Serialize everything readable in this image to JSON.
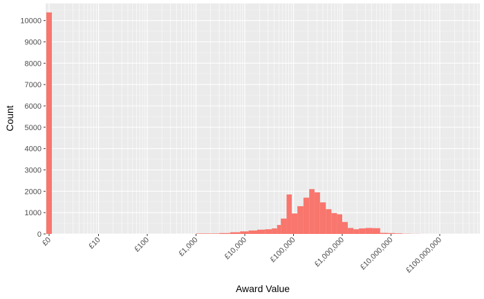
{
  "chart_data": {
    "type": "bar",
    "title": "",
    "xlabel": "Award Value",
    "ylabel": "Count",
    "x_scale": "log10 (with £0 shown at far left)",
    "x_tick_labels": [
      "£0",
      "£10",
      "£100",
      "£1,000",
      "£10,000",
      "£100,000",
      "£1,000,000",
      "£10,000,000",
      "£100,000,000"
    ],
    "y_ticks": [
      0,
      1000,
      2000,
      3000,
      4000,
      5000,
      6000,
      7000,
      8000,
      9000,
      10000
    ],
    "ylim": [
      0,
      10800
    ],
    "grid": true,
    "legend": "none",
    "bar_color": "#F8766D",
    "panel_color": "#EBEBEB",
    "bins": [
      {
        "x_from": 0,
        "x_to": 0,
        "value": 10380
      },
      {
        "x_from": 1000,
        "x_to": 3000,
        "value": 20
      },
      {
        "x_from": 3000,
        "x_to": 5000,
        "value": 40
      },
      {
        "x_from": 5000,
        "x_to": 8000,
        "value": 80
      },
      {
        "x_from": 8000,
        "x_to": 12000,
        "value": 120
      },
      {
        "x_from": 12000,
        "x_to": 18000,
        "value": 160
      },
      {
        "x_from": 18000,
        "x_to": 26000,
        "value": 200
      },
      {
        "x_from": 26000,
        "x_to": 36000,
        "value": 220
      },
      {
        "x_from": 36000,
        "x_to": 46000,
        "value": 260
      },
      {
        "x_from": 46000,
        "x_to": 55000,
        "value": 420
      },
      {
        "x_from": 55000,
        "x_to": 72000,
        "value": 720
      },
      {
        "x_from": 72000,
        "x_to": 92000,
        "value": 1850
      },
      {
        "x_from": 92000,
        "x_to": 120000,
        "value": 960
      },
      {
        "x_from": 120000,
        "x_to": 160000,
        "value": 1300
      },
      {
        "x_from": 160000,
        "x_to": 210000,
        "value": 1700
      },
      {
        "x_from": 210000,
        "x_to": 270000,
        "value": 2100
      },
      {
        "x_from": 270000,
        "x_to": 350000,
        "value": 1950
      },
      {
        "x_from": 350000,
        "x_to": 460000,
        "value": 1480
      },
      {
        "x_from": 460000,
        "x_to": 600000,
        "value": 1160
      },
      {
        "x_from": 600000,
        "x_to": 780000,
        "value": 980
      },
      {
        "x_from": 780000,
        "x_to": 1000000,
        "value": 920
      },
      {
        "x_from": 1000000,
        "x_to": 1300000,
        "value": 560
      },
      {
        "x_from": 1300000,
        "x_to": 1700000,
        "value": 280
      },
      {
        "x_from": 1700000,
        "x_to": 2200000,
        "value": 220
      },
      {
        "x_from": 2200000,
        "x_to": 3000000,
        "value": 260
      },
      {
        "x_from": 3000000,
        "x_to": 4200000,
        "value": 280
      },
      {
        "x_from": 4200000,
        "x_to": 6000000,
        "value": 270
      },
      {
        "x_from": 6000000,
        "x_to": 8500000,
        "value": 50
      },
      {
        "x_from": 8500000,
        "x_to": 12000000,
        "value": 40
      },
      {
        "x_from": 12000000,
        "x_to": 17000000,
        "value": 25
      },
      {
        "x_from": 17000000,
        "x_to": 25000000,
        "value": 10
      },
      {
        "x_from": 25000000,
        "x_to": 40000000,
        "value": 5
      }
    ]
  }
}
